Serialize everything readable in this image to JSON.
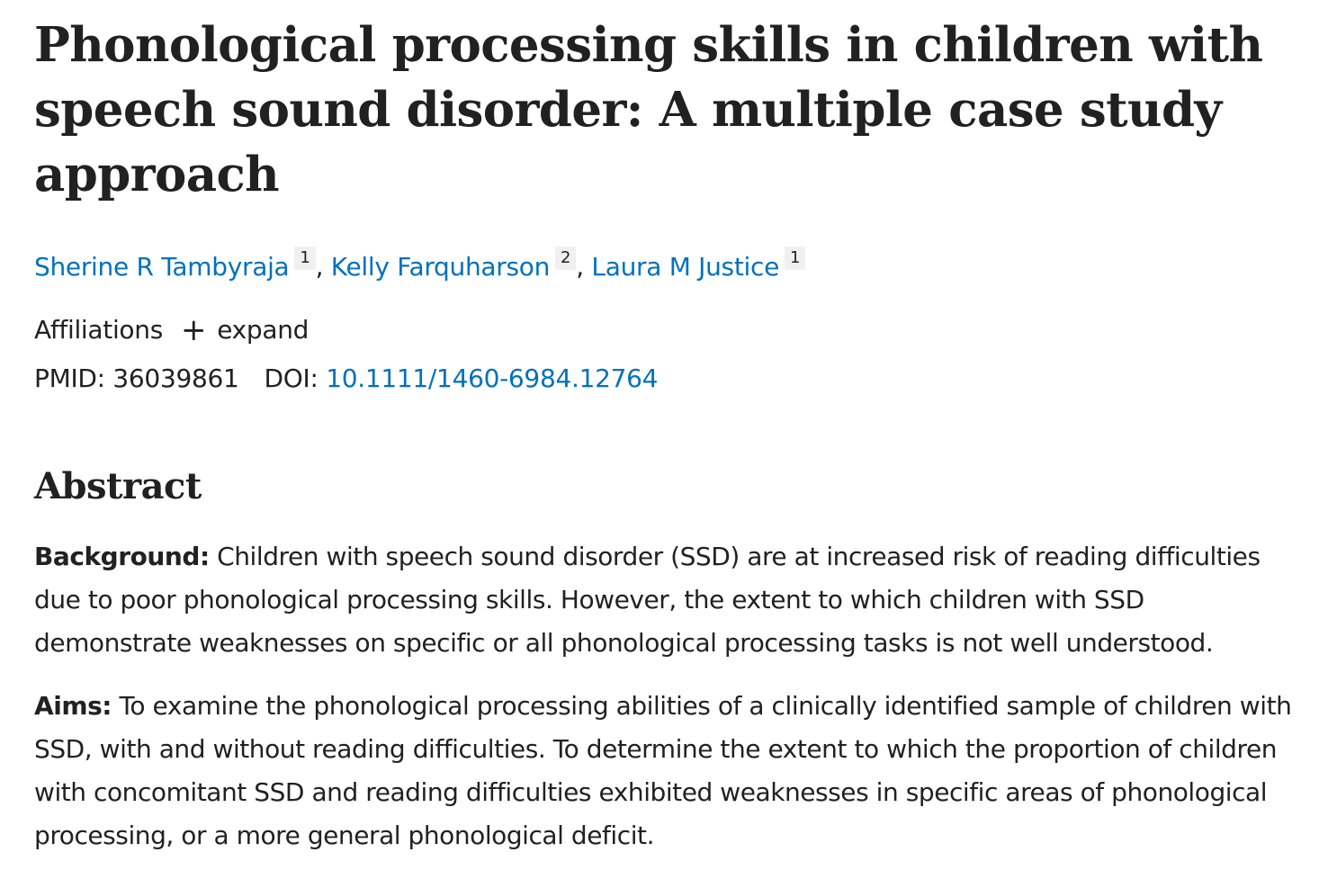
{
  "article": {
    "title": "Phonological processing skills in children with speech sound disorder: A multiple case study approach",
    "authors": [
      {
        "name": "Sherine R Tambyraja",
        "affiliation": "1"
      },
      {
        "name": "Kelly Farquharson",
        "affiliation": "2"
      },
      {
        "name": "Laura M Justice",
        "affiliation": "1"
      }
    ],
    "separator": ",",
    "affiliations_label": "Affiliations",
    "expand_label": "expand",
    "pmid_label": "PMID:",
    "pmid": "36039861",
    "doi_label": "DOI:",
    "doi": "10.1111/1460-6984.12764"
  },
  "abstract": {
    "heading": "Abstract",
    "sections": [
      {
        "label": "Background:",
        "text": "Children with speech sound disorder (SSD) are at increased risk of reading difficulties due to poor phonological processing skills. However, the extent to which children with SSD demonstrate weaknesses on specific or all phonological processing tasks is not well understood."
      },
      {
        "label": "Aims:",
        "text": "To examine the phonological processing abilities of a clinically identified sample of children with SSD, with and without reading difficulties. To determine the extent to which the proportion of children with concomitant SSD and reading difficulties exhibited weaknesses in specific areas of phonological processing, or a more general phonological deficit."
      }
    ]
  },
  "colors": {
    "link": "#0071bc",
    "text": "#212121",
    "badge_bg": "#f0f0f0"
  },
  "icons": {
    "expand": "plus-icon"
  }
}
